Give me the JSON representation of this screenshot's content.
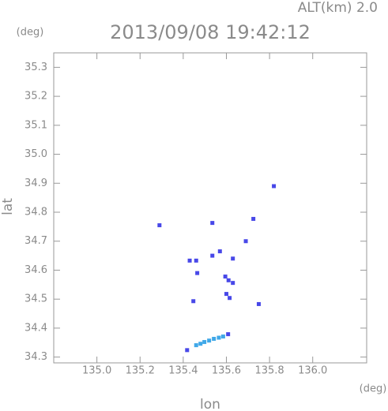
{
  "chart_data": {
    "type": "scatter",
    "title": "2013/09/08 19:42:12",
    "subtitle": "ALT(km) 2.0",
    "y_unit": "(deg)",
    "x_unit": "(deg)",
    "x_label": "lon",
    "y_label": "lat",
    "xlim": [
      134.8,
      136.25
    ],
    "ylim": [
      34.28,
      35.35
    ],
    "xticks": [
      {
        "value": 135.0,
        "label": "135.0"
      },
      135.2,
      135.4,
      135.6,
      135.8,
      {
        "value": 136.0,
        "label": "136.0"
      }
    ],
    "yticks": [
      34.3,
      34.4,
      34.5,
      34.6,
      34.7,
      34.8,
      34.9,
      {
        "value": 35.0,
        "label": "35.0"
      },
      35.1,
      35.2,
      35.3
    ],
    "series": [
      {
        "color": "#4848e8",
        "x": [
          135.82,
          135.29,
          135.535,
          135.725,
          135.69,
          135.43,
          135.46,
          135.465,
          135.535,
          135.57,
          135.63,
          135.595,
          135.61,
          135.63,
          135.6,
          135.615,
          135.447,
          135.75,
          135.608,
          135.418
        ],
        "y": [
          34.89,
          34.755,
          34.763,
          34.777,
          34.7,
          34.633,
          34.633,
          34.59,
          34.65,
          34.665,
          34.64,
          34.578,
          34.565,
          34.556,
          34.518,
          34.504,
          34.493,
          34.483,
          34.379,
          34.324
        ]
      },
      {
        "color": "#40a8e8",
        "x": [
          135.46,
          135.48,
          135.498,
          135.52,
          135.542,
          135.565,
          135.585
        ],
        "y": [
          34.341,
          34.346,
          34.352,
          34.357,
          34.363,
          34.367,
          34.371
        ]
      }
    ]
  }
}
